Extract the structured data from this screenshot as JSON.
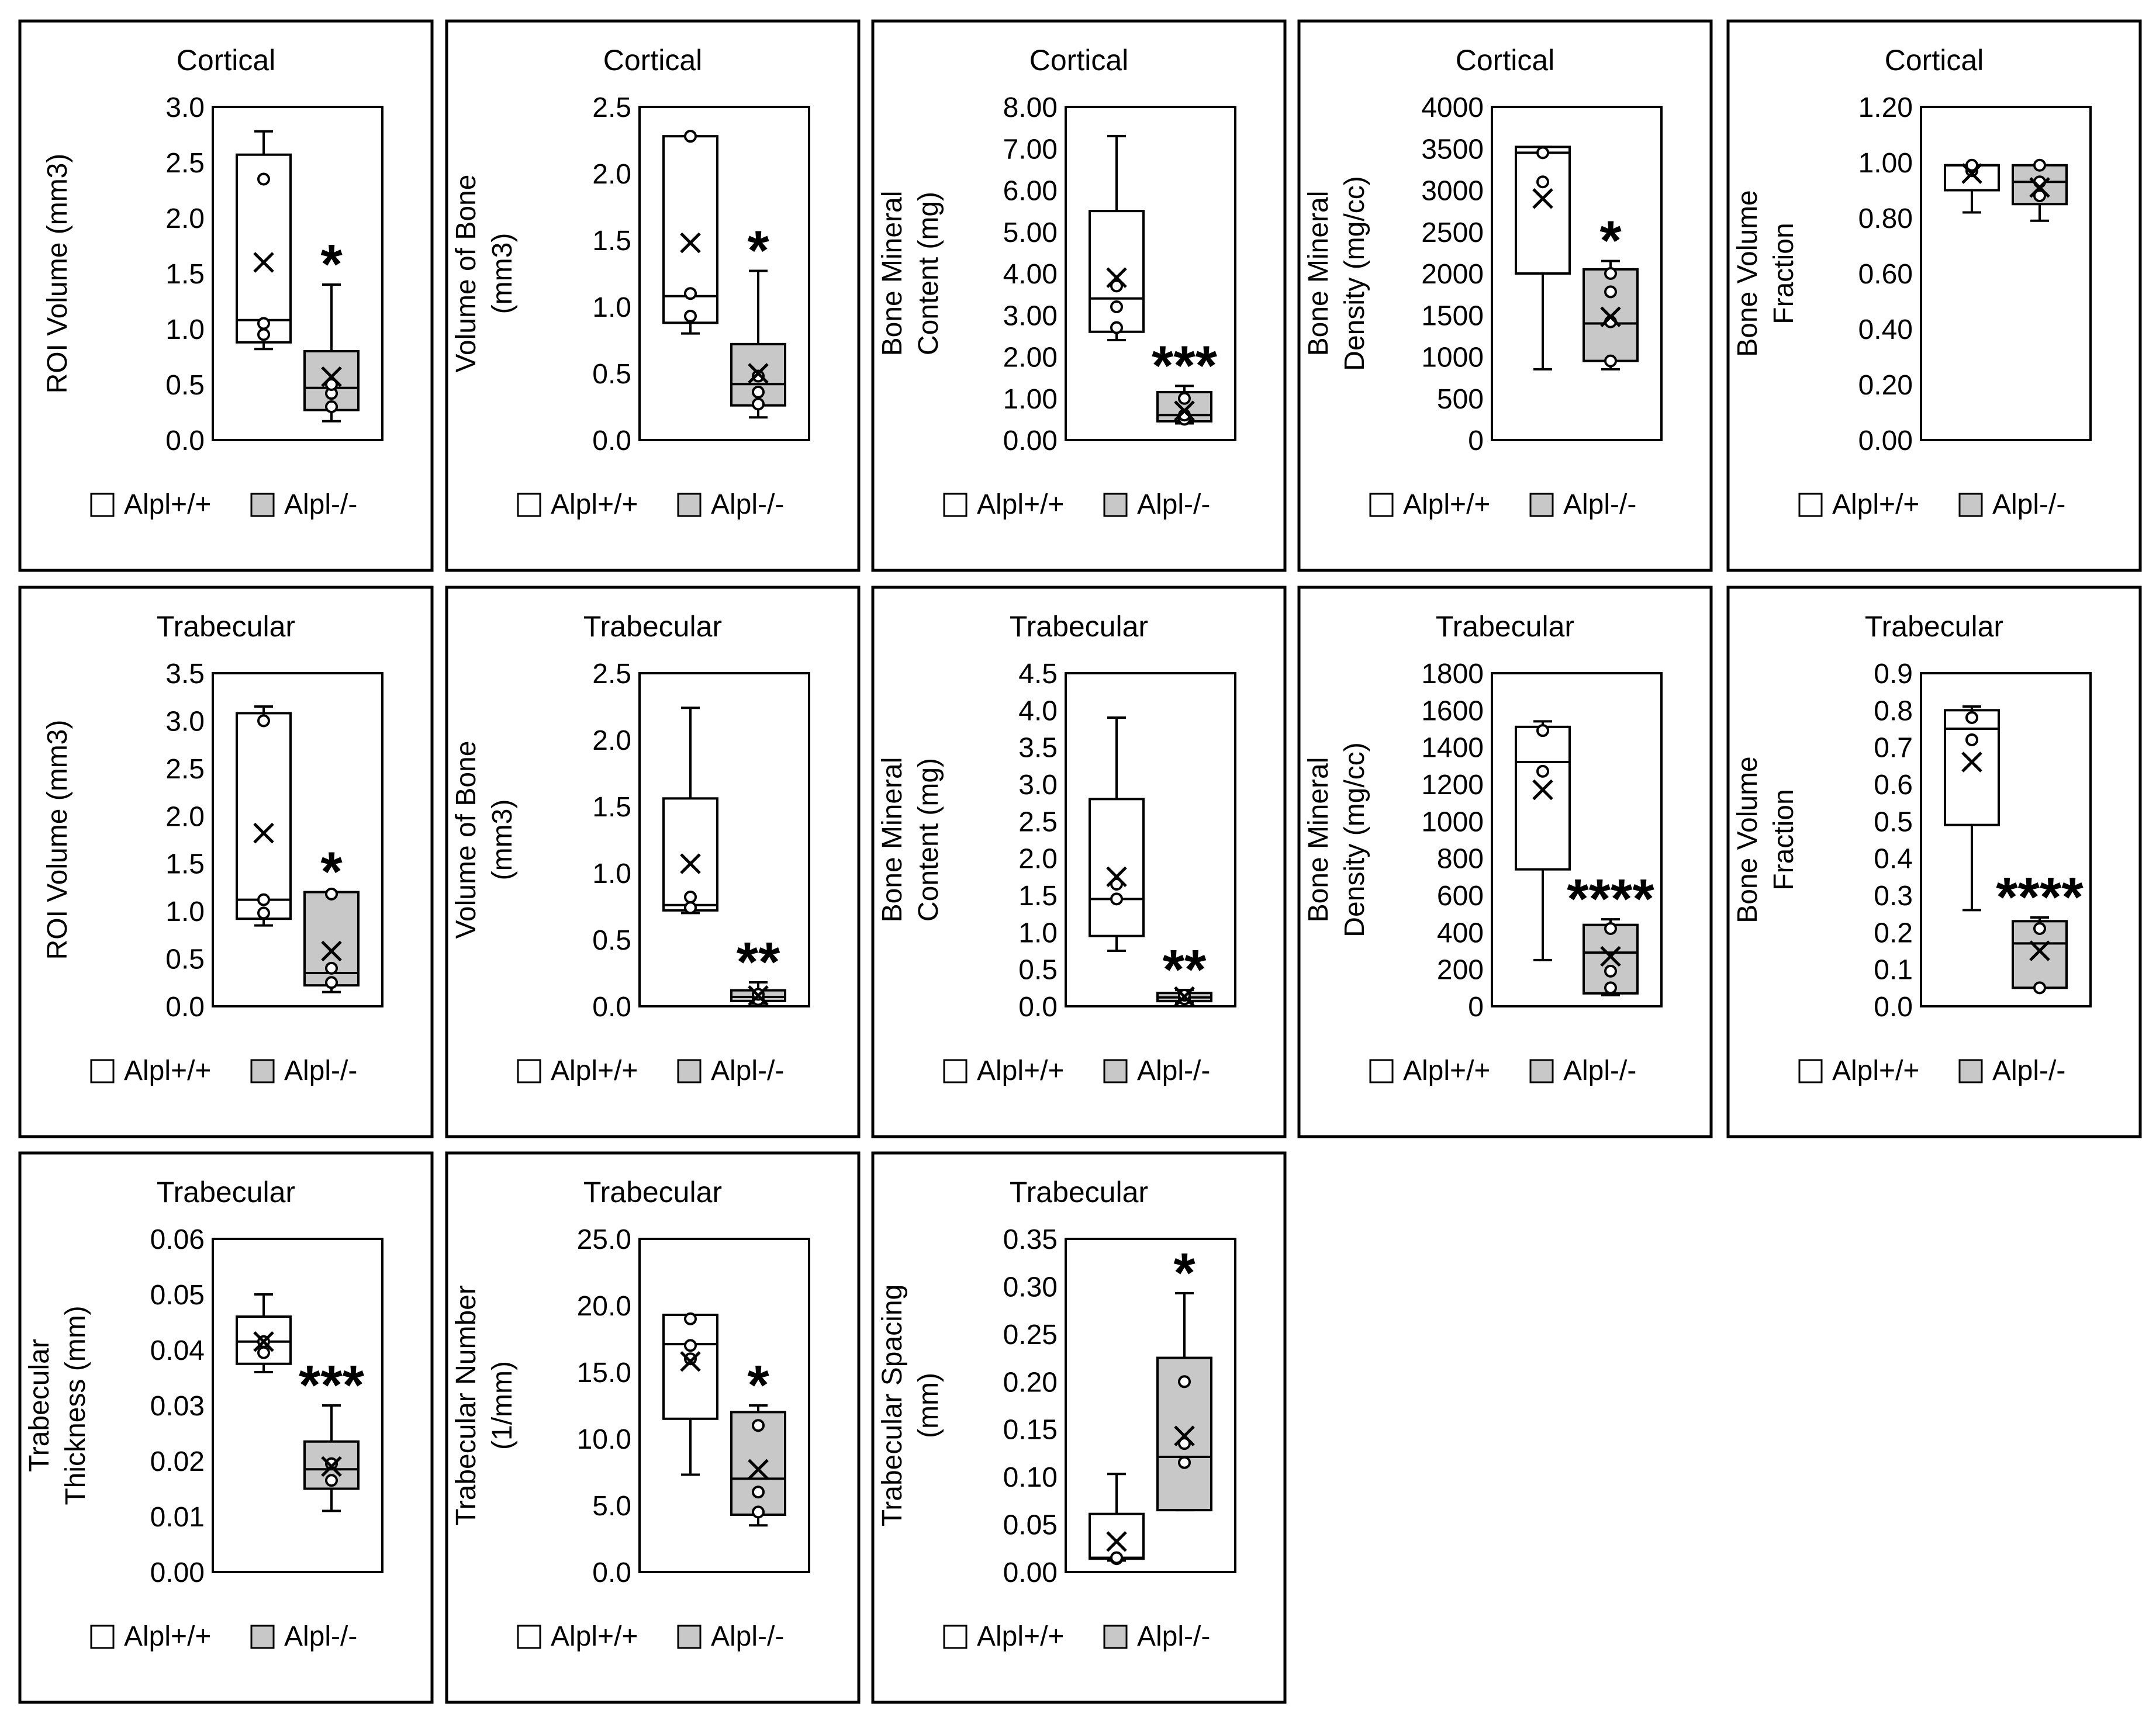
{
  "legend": {
    "wt_label": "Alpl+/+",
    "ko_label": "Alpl-/-"
  },
  "colors": {
    "wt_fill": "#ffffff",
    "ko_fill": "#c8c8c8",
    "stroke": "#000000"
  },
  "chart_data": [
    {
      "type": "box",
      "title": "Cortical",
      "ylabel": [
        "ROI Volume (mm3)"
      ],
      "ylim": [
        0,
        3.0
      ],
      "yticks": [
        "0.0",
        "0.5",
        "1.0",
        "1.5",
        "2.0",
        "2.5",
        "3.0"
      ],
      "series": [
        {
          "name": "Alpl+/+",
          "min": 0.82,
          "q1": 0.88,
          "median": 1.08,
          "q3": 2.57,
          "max": 2.78,
          "mean": 1.6,
          "points": [
            0.95,
            1.05,
            2.35
          ]
        },
        {
          "name": "Alpl-/-",
          "min": 0.17,
          "q1": 0.27,
          "median": 0.47,
          "q3": 0.8,
          "max": 1.4,
          "mean": 0.57,
          "points": [
            0.3,
            0.42,
            0.5
          ]
        }
      ],
      "significance": "*"
    },
    {
      "type": "box",
      "title": "Cortical",
      "ylabel": [
        "Volume of Bone",
        "(mm3)"
      ],
      "ylim": [
        0,
        2.5
      ],
      "yticks": [
        "0.0",
        "0.5",
        "1.0",
        "1.5",
        "2.0",
        "2.5"
      ],
      "series": [
        {
          "name": "Alpl+/+",
          "min": 0.8,
          "q1": 0.88,
          "median": 1.08,
          "q3": 2.28,
          "max": 2.28,
          "mean": 1.48,
          "points": [
            0.93,
            1.1,
            2.28
          ]
        },
        {
          "name": "Alpl-/-",
          "min": 0.17,
          "q1": 0.26,
          "median": 0.42,
          "q3": 0.72,
          "max": 1.27,
          "mean": 0.5,
          "points": [
            0.27,
            0.36,
            0.48
          ]
        }
      ],
      "significance": "*"
    },
    {
      "type": "box",
      "title": "Cortical",
      "ylabel": [
        "Bone Mineral",
        "Content (mg)"
      ],
      "ylim": [
        0,
        8.0
      ],
      "yticks": [
        "0.00",
        "1.00",
        "2.00",
        "3.00",
        "4.00",
        "5.00",
        "6.00",
        "7.00",
        "8.00"
      ],
      "series": [
        {
          "name": "Alpl+/+",
          "min": 2.4,
          "q1": 2.6,
          "median": 3.4,
          "q3": 5.5,
          "max": 7.3,
          "mean": 3.9,
          "points": [
            2.7,
            3.2,
            3.7
          ]
        },
        {
          "name": "Alpl-/-",
          "min": 0.4,
          "q1": 0.45,
          "median": 0.6,
          "q3": 1.15,
          "max": 1.3,
          "mean": 0.7,
          "points": [
            0.5,
            0.6,
            1.0
          ]
        }
      ],
      "significance": "***"
    },
    {
      "type": "box",
      "title": "Cortical",
      "ylabel": [
        "Bone Mineral",
        "Density (mg/cc)"
      ],
      "ylim": [
        0,
        4000
      ],
      "yticks": [
        "0",
        "500",
        "1000",
        "1500",
        "2000",
        "2500",
        "3000",
        "3500",
        "4000"
      ],
      "series": [
        {
          "name": "Alpl+/+",
          "min": 850,
          "q1": 2000,
          "median": 3450,
          "q3": 3520,
          "max": 3520,
          "mean": 2900,
          "points": [
            3100,
            3450
          ]
        },
        {
          "name": "Alpl-/-",
          "min": 850,
          "q1": 950,
          "median": 1400,
          "q3": 2050,
          "max": 2150,
          "mean": 1480,
          "points": [
            950,
            1420,
            1780,
            2000
          ]
        }
      ],
      "significance": "*"
    },
    {
      "type": "box",
      "title": "Cortical",
      "ylabel": [
        "Bone Volume",
        "Fraction"
      ],
      "ylim": [
        0,
        1.2
      ],
      "yticks": [
        "0.00",
        "0.20",
        "0.40",
        "0.60",
        "0.80",
        "1.00",
        "1.20"
      ],
      "series": [
        {
          "name": "Alpl+/+",
          "min": 0.82,
          "q1": 0.9,
          "median": 0.99,
          "q3": 0.99,
          "max": 0.99,
          "mean": 0.96,
          "points": [
            0.97,
            0.99
          ]
        },
        {
          "name": "Alpl-/-",
          "min": 0.79,
          "q1": 0.85,
          "median": 0.93,
          "q3": 0.99,
          "max": 0.99,
          "mean": 0.91,
          "points": [
            0.88,
            0.93,
            0.99
          ]
        }
      ],
      "significance": ""
    },
    {
      "type": "box",
      "title": "Trabecular",
      "ylabel": [
        "ROI Volume (mm3)"
      ],
      "ylim": [
        0,
        3.5
      ],
      "yticks": [
        "0.0",
        "0.5",
        "1.0",
        "1.5",
        "2.0",
        "2.5",
        "3.0",
        "3.5"
      ],
      "series": [
        {
          "name": "Alpl+/+",
          "min": 0.85,
          "q1": 0.92,
          "median": 1.12,
          "q3": 3.08,
          "max": 3.15,
          "mean": 1.82,
          "points": [
            0.98,
            1.12,
            3.0
          ]
        },
        {
          "name": "Alpl-/-",
          "min": 0.15,
          "q1": 0.22,
          "median": 0.35,
          "q3": 1.2,
          "max": 1.2,
          "mean": 0.58,
          "points": [
            0.25,
            0.4,
            1.18
          ]
        }
      ],
      "significance": "*"
    },
    {
      "type": "box",
      "title": "Trabecular",
      "ylabel": [
        "Volume of Bone",
        "(mm3)"
      ],
      "ylim": [
        0,
        2.5
      ],
      "yticks": [
        "0.0",
        "0.5",
        "1.0",
        "1.5",
        "2.0",
        "2.5"
      ],
      "series": [
        {
          "name": "Alpl+/+",
          "min": 0.7,
          "q1": 0.72,
          "median": 0.76,
          "q3": 1.56,
          "max": 2.24,
          "mean": 1.07,
          "points": [
            0.74,
            0.82
          ]
        },
        {
          "name": "Alpl-/-",
          "min": 0.02,
          "q1": 0.04,
          "median": 0.07,
          "q3": 0.12,
          "max": 0.18,
          "mean": 0.08,
          "points": [
            0.05,
            0.09
          ]
        }
      ],
      "significance": "**"
    },
    {
      "type": "box",
      "title": "Trabecular",
      "ylabel": [
        "Bone Mineral",
        "Content (mg)"
      ],
      "ylim": [
        0,
        4.5
      ],
      "yticks": [
        "0.0",
        "0.5",
        "1.0",
        "1.5",
        "2.0",
        "2.5",
        "3.0",
        "3.5",
        "4.0",
        "4.5"
      ],
      "series": [
        {
          "name": "Alpl+/+",
          "min": 0.75,
          "q1": 0.95,
          "median": 1.45,
          "q3": 2.8,
          "max": 3.9,
          "mean": 1.75,
          "points": [
            1.45,
            1.65
          ]
        },
        {
          "name": "Alpl-/-",
          "min": 0.05,
          "q1": 0.07,
          "median": 0.12,
          "q3": 0.18,
          "max": 0.22,
          "mean": 0.13,
          "points": [
            0.1,
            0.15
          ]
        }
      ],
      "significance": "**"
    },
    {
      "type": "box",
      "title": "Trabecular",
      "ylabel": [
        "Bone Mineral",
        "Density (mg/cc)"
      ],
      "ylim": [
        0,
        1800
      ],
      "yticks": [
        "0",
        "200",
        "400",
        "600",
        "800",
        "1000",
        "1200",
        "1400",
        "1600",
        "1800"
      ],
      "series": [
        {
          "name": "Alpl+/+",
          "min": 250,
          "q1": 740,
          "median": 1320,
          "q3": 1510,
          "max": 1540,
          "mean": 1170,
          "points": [
            1270,
            1490
          ]
        },
        {
          "name": "Alpl-/-",
          "min": 60,
          "q1": 70,
          "median": 290,
          "q3": 440,
          "max": 470,
          "mean": 270,
          "points": [
            100,
            190,
            420
          ]
        }
      ],
      "significance": "****"
    },
    {
      "type": "box",
      "title": "Trabecular",
      "ylabel": [
        "Bone Volume",
        "Fraction"
      ],
      "ylim": [
        0,
        0.9
      ],
      "yticks": [
        "0.0",
        "0.1",
        "0.2",
        "0.3",
        "0.4",
        "0.5",
        "0.6",
        "0.7",
        "0.8",
        "0.9"
      ],
      "series": [
        {
          "name": "Alpl+/+",
          "min": 0.26,
          "q1": 0.49,
          "median": 0.75,
          "q3": 0.8,
          "max": 0.81,
          "mean": 0.66,
          "points": [
            0.72,
            0.78
          ]
        },
        {
          "name": "Alpl-/-",
          "min": 0.05,
          "q1": 0.05,
          "median": 0.17,
          "q3": 0.23,
          "max": 0.24,
          "mean": 0.15,
          "points": [
            0.05,
            0.21
          ]
        }
      ],
      "significance": "****"
    },
    {
      "type": "box",
      "title": "Trabecular",
      "ylabel": [
        "Trabecular",
        "Thickness (mm)"
      ],
      "ylim": [
        0,
        0.06
      ],
      "yticks": [
        "0.00",
        "0.01",
        "0.02",
        "0.03",
        "0.04",
        "0.05",
        "0.06"
      ],
      "series": [
        {
          "name": "Alpl+/+",
          "min": 0.036,
          "q1": 0.0375,
          "median": 0.0415,
          "q3": 0.046,
          "max": 0.05,
          "mean": 0.0415,
          "points": [
            0.0395,
            0.0415
          ]
        },
        {
          "name": "Alpl-/-",
          "min": 0.011,
          "q1": 0.015,
          "median": 0.0185,
          "q3": 0.0235,
          "max": 0.03,
          "mean": 0.019,
          "points": [
            0.0165,
            0.0195
          ]
        }
      ],
      "significance": "***"
    },
    {
      "type": "box",
      "title": "Trabecular",
      "ylabel": [
        "Trabecular Number",
        "(1/mm)"
      ],
      "ylim": [
        0,
        25
      ],
      "yticks": [
        "0.0",
        "5.0",
        "10.0",
        "15.0",
        "20.0",
        "25.0"
      ],
      "series": [
        {
          "name": "Alpl+/+",
          "min": 7.3,
          "q1": 11.5,
          "median": 17.1,
          "q3": 19.3,
          "max": 19.3,
          "mean": 15.8,
          "points": [
            16.0,
            17.0,
            19.0
          ]
        },
        {
          "name": "Alpl-/-",
          "min": 3.5,
          "q1": 4.3,
          "median": 7.0,
          "q3": 12.0,
          "max": 12.5,
          "mean": 7.7,
          "points": [
            4.5,
            6.0,
            11.0
          ]
        }
      ],
      "significance": "*"
    },
    {
      "type": "box",
      "title": "Trabecular",
      "ylabel": [
        "Trabecular Spacing",
        "(mm)"
      ],
      "ylim": [
        0,
        0.35
      ],
      "yticks": [
        "0.00",
        "0.05",
        "0.10",
        "0.15",
        "0.20",
        "0.25",
        "0.30",
        "0.35"
      ],
      "series": [
        {
          "name": "Alpl+/+",
          "min": 0.012,
          "q1": 0.014,
          "median": 0.015,
          "q3": 0.061,
          "max": 0.103,
          "mean": 0.032,
          "points": [
            0.014,
            0.015
          ]
        },
        {
          "name": "Alpl-/-",
          "min": 0.065,
          "q1": 0.065,
          "median": 0.121,
          "q3": 0.225,
          "max": 0.293,
          "mean": 0.143,
          "points": [
            0.115,
            0.135,
            0.2
          ]
        }
      ],
      "significance": "*"
    }
  ]
}
